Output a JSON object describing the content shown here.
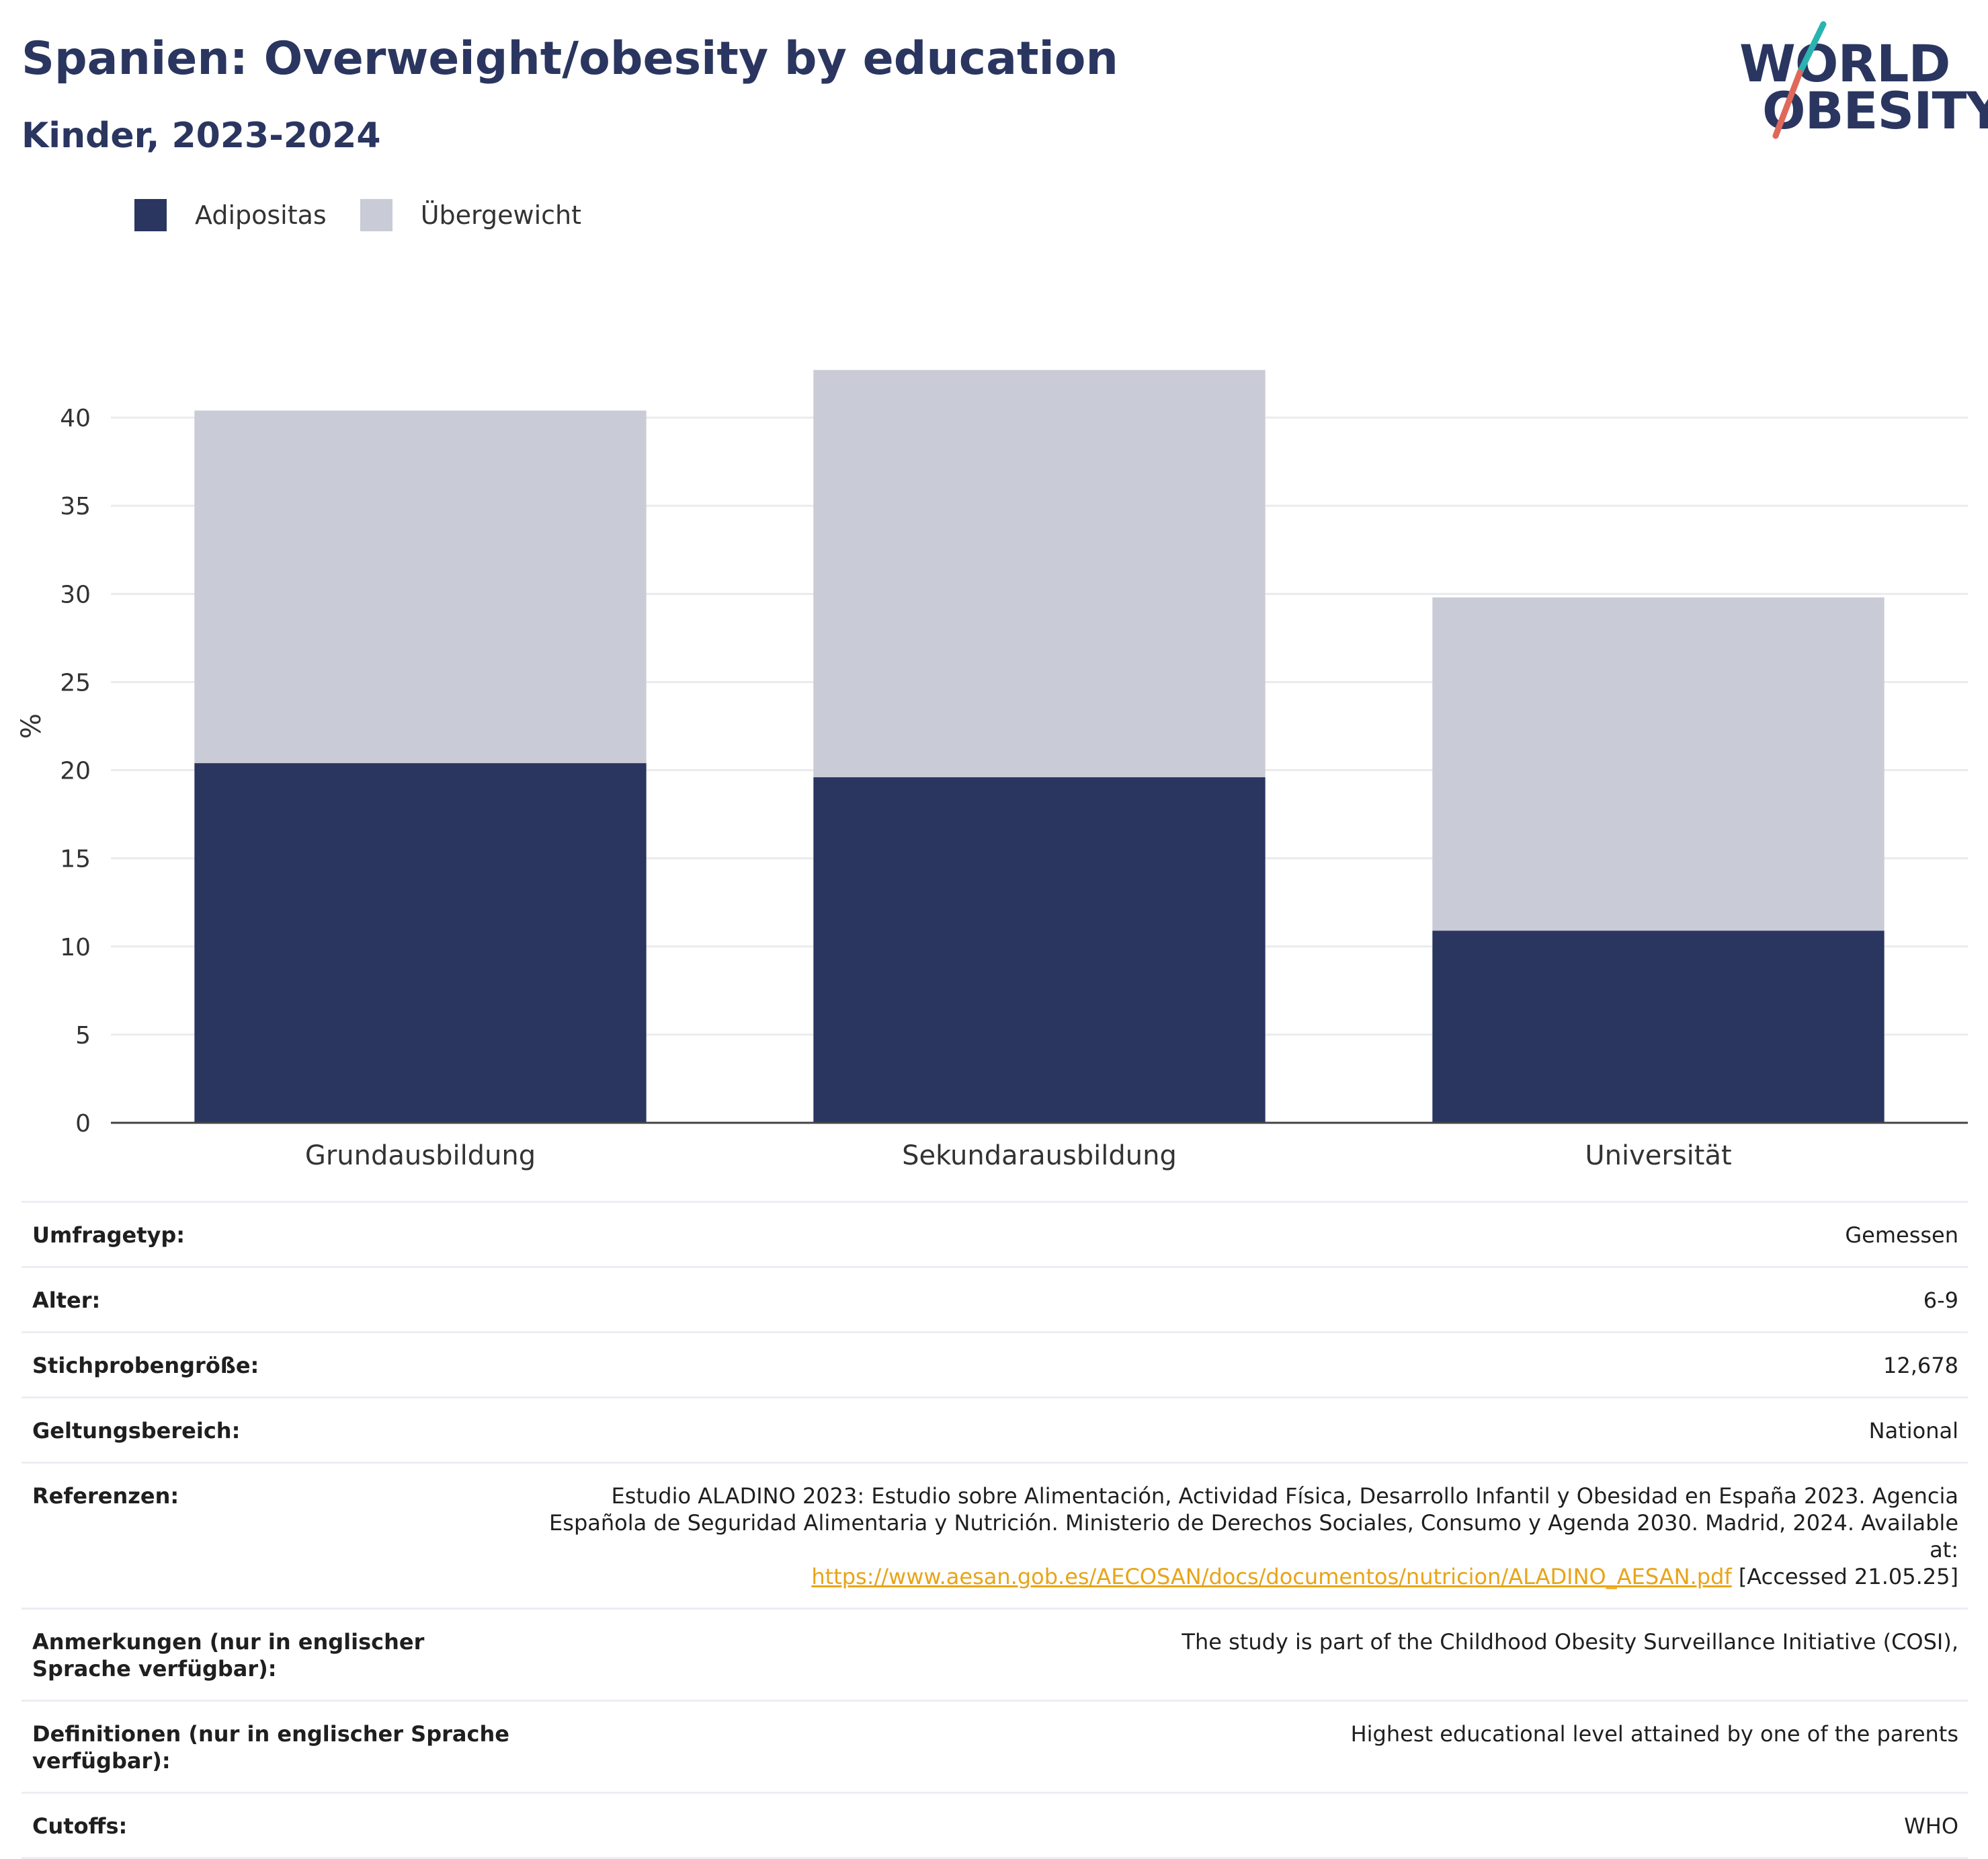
{
  "title": "Spanien: Overweight/obesity by education",
  "subtitle": "Kinder, 2023-2024",
  "logo": {
    "line1": "WORLD",
    "line2": "OBESITY"
  },
  "colors": {
    "adipositas": "#2a3660",
    "uebergewicht": "#c9cbd6",
    "title": "#2a3660",
    "link": "#e8a417"
  },
  "legend": [
    {
      "label": "Adipositas"
    },
    {
      "label": "Übergewicht"
    }
  ],
  "chart_data": {
    "type": "bar",
    "stacked": true,
    "categories": [
      "Grundausbildung",
      "Sekundarausbildung",
      "Universität"
    ],
    "series": [
      {
        "name": "Adipositas",
        "values": [
          20.4,
          19.6,
          10.9
        ]
      },
      {
        "name": "Übergewicht",
        "values": [
          20.0,
          23.1,
          18.9
        ]
      }
    ],
    "ylabel": "%",
    "ylim": [
      0,
      45
    ],
    "yticks": [
      0,
      5,
      10,
      15,
      20,
      25,
      30,
      35,
      40
    ],
    "grid": true,
    "legend_position": "top-left"
  },
  "meta": {
    "rows": [
      {
        "key": "Umfragetyp:",
        "value": "Gemessen"
      },
      {
        "key": "Alter:",
        "value": "6-9"
      },
      {
        "key": "Stichprobengröße:",
        "value": "12,678"
      },
      {
        "key": "Geltungsbereich:",
        "value": "National"
      }
    ],
    "ref_key": "Referenzen:",
    "ref_text1": "Estudio ALADINO 2023: Estudio sobre Alimentación, Actividad Física, Desarrollo Infantil y Obesidad en España 2023. Agencia Española de Seguridad Alimentaria y Nutrición. Ministerio de Derechos Sociales, Consumo y Agenda 2030. Madrid, 2024. Available at:",
    "ref_link": "https://www.aesan.gob.es/AECOSAN/docs/documentos/nutricion/ALADINO_AESAN.pdf",
    "ref_text2": " [Accessed 21.05.25]",
    "rows2": [
      {
        "key": "Anmerkungen (nur in englischer Sprache verfügbar):",
        "value": "The study is part of the Childhood Obesity Surveillance Initiative (COSI),"
      },
      {
        "key": "Definitionen (nur in englischer Sprache verfügbar):",
        "value": "Highest educational level attained by one of the parents"
      },
      {
        "key": "Cutoffs:",
        "value": "WHO"
      }
    ]
  }
}
